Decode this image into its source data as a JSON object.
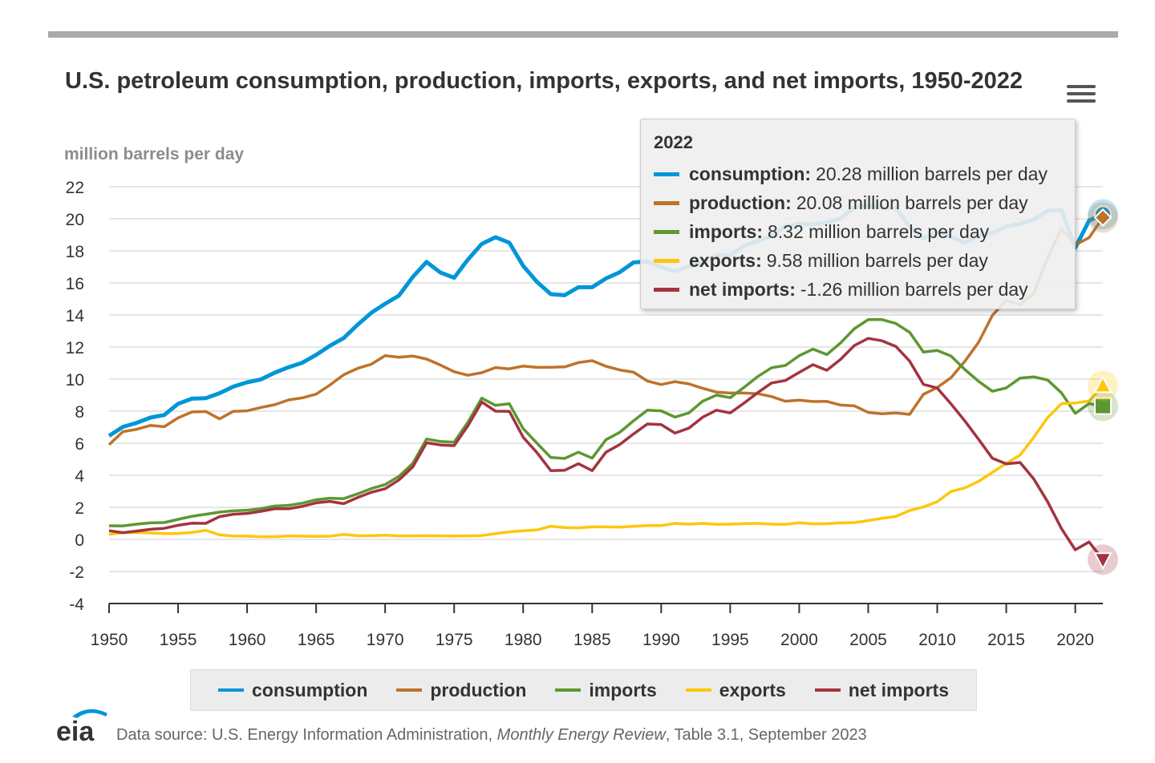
{
  "header": {
    "title": "U.S. petroleum consumption, production, imports, exports, and net imports, 1950-2022",
    "menu_icon": "hamburger-icon"
  },
  "tooltip": {
    "year": "2022",
    "rows": [
      {
        "name": "consumption:",
        "value": "20.28 million barrels per day"
      },
      {
        "name": "production:",
        "value": "20.08 million barrels per day"
      },
      {
        "name": "imports:",
        "value": "8.32 million barrels per day"
      },
      {
        "name": "exports:",
        "value": "9.58 million barrels per day"
      },
      {
        "name": "net imports:",
        "value": "-1.26 million barrels per day"
      }
    ]
  },
  "footer": {
    "logo_text": "eia",
    "source_prefix": "Data source: U.S. Energy Information Administration, ",
    "source_title": "Monthly Energy Review",
    "source_suffix": ", Table 3.1, September 2023"
  },
  "chart_data": {
    "type": "line",
    "title": "U.S. petroleum consumption, production, imports, exports, and net imports, 1950-2022",
    "ylabel": "million barrels per day",
    "xlabel": "",
    "ylim": [
      -4,
      22
    ],
    "xlim": [
      1950,
      2022
    ],
    "yticks": [
      "22",
      "20",
      "18",
      "16",
      "14",
      "12",
      "10",
      "8",
      "6",
      "4",
      "2",
      "0",
      "-2",
      "-4"
    ],
    "xticks": [
      "1950",
      "1955",
      "1960",
      "1965",
      "1970",
      "1975",
      "1980",
      "1985",
      "1990",
      "1995",
      "2000",
      "2005",
      "2010",
      "2015",
      "2020"
    ],
    "grid": true,
    "legend_position": "bottom",
    "x_start": 1950,
    "series": [
      {
        "name": "consumption",
        "color": "#0096d7",
        "marker": "circle",
        "values": [
          6.46,
          7.02,
          7.27,
          7.6,
          7.76,
          8.46,
          8.78,
          8.81,
          9.12,
          9.53,
          9.8,
          9.98,
          10.4,
          10.74,
          11.02,
          11.51,
          12.08,
          12.56,
          13.39,
          14.14,
          14.7,
          15.21,
          16.37,
          17.31,
          16.65,
          16.32,
          17.46,
          18.43,
          18.85,
          18.51,
          17.06,
          16.06,
          15.3,
          15.23,
          15.73,
          15.73,
          16.28,
          16.67,
          17.28,
          17.33,
          16.99,
          16.71,
          17.03,
          17.24,
          17.72,
          17.72,
          18.31,
          18.62,
          18.92,
          19.52,
          19.7,
          19.65,
          19.76,
          20.03,
          20.73,
          20.8,
          20.69,
          20.68,
          19.5,
          18.77,
          19.18,
          18.88,
          18.49,
          18.97,
          19.11,
          19.53,
          19.69,
          19.96,
          20.51,
          20.54,
          18.19,
          19.89,
          20.28
        ]
      },
      {
        "name": "production",
        "color": "#bd732a",
        "marker": "diamond",
        "values": [
          5.91,
          6.72,
          6.87,
          7.11,
          7.03,
          7.58,
          7.95,
          7.98,
          7.52,
          7.99,
          8.02,
          8.23,
          8.4,
          8.7,
          8.83,
          9.06,
          9.63,
          10.27,
          10.67,
          10.93,
          11.46,
          11.36,
          11.44,
          11.25,
          10.88,
          10.46,
          10.24,
          10.4,
          10.72,
          10.64,
          10.81,
          10.73,
          10.74,
          10.76,
          11.03,
          11.15,
          10.8,
          10.57,
          10.43,
          9.88,
          9.66,
          9.84,
          9.7,
          9.43,
          9.19,
          9.13,
          9.13,
          9.09,
          8.91,
          8.62,
          8.69,
          8.6,
          8.61,
          8.38,
          8.33,
          7.92,
          7.84,
          7.89,
          7.8,
          9.05,
          9.47,
          10.09,
          11.11,
          12.3,
          13.98,
          14.9,
          14.65,
          15.37,
          17.6,
          19.37,
          18.38,
          18.82,
          20.08
        ]
      },
      {
        "name": "imports",
        "color": "#5d9732",
        "marker": "square",
        "values": [
          0.85,
          0.84,
          0.95,
          1.03,
          1.05,
          1.25,
          1.44,
          1.57,
          1.7,
          1.78,
          1.82,
          1.92,
          2.08,
          2.12,
          2.26,
          2.47,
          2.57,
          2.54,
          2.84,
          3.17,
          3.42,
          3.93,
          4.74,
          6.26,
          6.11,
          6.06,
          7.31,
          8.81,
          8.36,
          8.46,
          6.91,
          6.0,
          5.11,
          5.05,
          5.44,
          5.07,
          6.22,
          6.68,
          7.4,
          8.06,
          8.02,
          7.63,
          7.89,
          8.62,
          9.0,
          8.84,
          9.48,
          10.16,
          10.71,
          10.85,
          11.46,
          11.87,
          11.53,
          12.26,
          13.15,
          13.71,
          13.71,
          13.47,
          12.92,
          11.69,
          11.79,
          11.44,
          10.6,
          9.86,
          9.24,
          9.45,
          10.06,
          10.14,
          9.94,
          9.14,
          7.86,
          8.47,
          8.32
        ]
      },
      {
        "name": "exports",
        "color": "#ffc60b",
        "marker": "triangle",
        "values": [
          0.31,
          0.42,
          0.43,
          0.4,
          0.36,
          0.37,
          0.43,
          0.57,
          0.28,
          0.21,
          0.2,
          0.17,
          0.17,
          0.21,
          0.2,
          0.19,
          0.2,
          0.31,
          0.23,
          0.23,
          0.26,
          0.22,
          0.22,
          0.23,
          0.22,
          0.21,
          0.22,
          0.24,
          0.36,
          0.47,
          0.54,
          0.59,
          0.82,
          0.74,
          0.72,
          0.78,
          0.78,
          0.76,
          0.82,
          0.86,
          0.86,
          1.0,
          0.95,
          1.0,
          0.94,
          0.95,
          0.98,
          1.0,
          0.95,
          0.94,
          1.04,
          0.97,
          0.98,
          1.03,
          1.05,
          1.17,
          1.32,
          1.43,
          1.8,
          2.02,
          2.35,
          2.99,
          3.21,
          3.62,
          4.18,
          4.74,
          5.26,
          6.38,
          7.6,
          8.47,
          8.51,
          8.63,
          9.58
        ]
      },
      {
        "name": "net imports",
        "color": "#a33340",
        "marker": "triangle-down",
        "values": [
          0.54,
          0.42,
          0.52,
          0.63,
          0.69,
          0.88,
          1.01,
          1.0,
          1.42,
          1.57,
          1.62,
          1.75,
          1.91,
          1.91,
          2.06,
          2.28,
          2.37,
          2.23,
          2.61,
          2.94,
          3.16,
          3.71,
          4.52,
          6.03,
          5.89,
          5.85,
          7.09,
          8.57,
          8.0,
          7.99,
          6.37,
          5.41,
          4.29,
          4.31,
          4.72,
          4.29,
          5.44,
          5.92,
          6.58,
          7.2,
          7.16,
          6.63,
          6.94,
          7.62,
          8.06,
          7.89,
          8.5,
          9.16,
          9.76,
          9.91,
          10.42,
          10.9,
          10.55,
          11.23,
          12.1,
          12.54,
          12.39,
          12.04,
          11.12,
          9.67,
          9.44,
          8.45,
          7.39,
          6.24,
          5.06,
          4.71,
          4.8,
          3.76,
          2.34,
          0.67,
          -0.65,
          -0.16,
          -1.26
        ]
      }
    ]
  }
}
